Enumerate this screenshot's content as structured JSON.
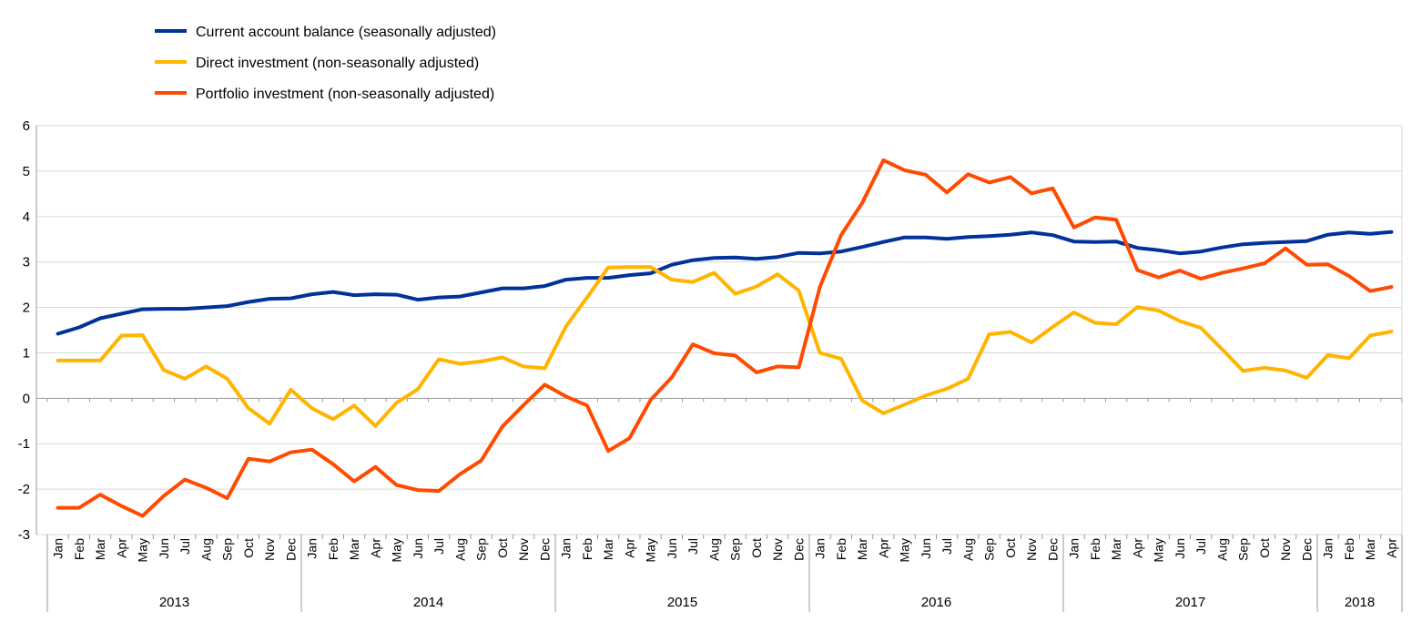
{
  "chart_data": {
    "type": "line",
    "title": "",
    "xlabel": "",
    "ylabel": "",
    "ylim": [
      -3,
      6
    ],
    "yticks": [
      -3,
      -2,
      -1,
      0,
      1,
      2,
      3,
      4,
      5,
      6
    ],
    "grid": true,
    "legend_position": "top-left",
    "months": [
      "Jan",
      "Feb",
      "Mar",
      "Apr",
      "May",
      "Jun",
      "Jul",
      "Aug",
      "Sep",
      "Oct",
      "Nov",
      "Dec"
    ],
    "years": [
      {
        "label": "2013",
        "months": 12
      },
      {
        "label": "2014",
        "months": 12
      },
      {
        "label": "2015",
        "months": 12
      },
      {
        "label": "2016",
        "months": 12
      },
      {
        "label": "2017",
        "months": 12
      },
      {
        "label": "2018",
        "months": 4
      }
    ],
    "series": [
      {
        "name": "Current account balance (seasonally adjusted)",
        "color": "#003299",
        "values": [
          1.42,
          1.56,
          1.76,
          1.86,
          1.96,
          1.97,
          1.97,
          2.0,
          2.03,
          2.12,
          2.19,
          2.2,
          2.29,
          2.34,
          2.27,
          2.29,
          2.28,
          2.17,
          2.22,
          2.24,
          2.33,
          2.42,
          2.42,
          2.47,
          2.61,
          2.65,
          2.65,
          2.71,
          2.75,
          2.94,
          3.04,
          3.09,
          3.1,
          3.07,
          3.11,
          3.2,
          3.19,
          3.23,
          3.33,
          3.44,
          3.54,
          3.54,
          3.51,
          3.55,
          3.57,
          3.6,
          3.65,
          3.59,
          3.45,
          3.44,
          3.45,
          3.31,
          3.26,
          3.19,
          3.23,
          3.32,
          3.39,
          3.42,
          3.44,
          3.46,
          3.6,
          3.65,
          3.62,
          3.66
        ]
      },
      {
        "name": "Direct investment (non-seasonally adjusted)",
        "color": "#FFB400",
        "values": [
          0.83,
          0.83,
          0.83,
          1.38,
          1.39,
          0.62,
          0.43,
          0.7,
          0.43,
          -0.22,
          -0.56,
          0.19,
          -0.22,
          -0.46,
          -0.16,
          -0.61,
          -0.1,
          0.2,
          0.86,
          0.76,
          0.81,
          0.9,
          0.7,
          0.66,
          1.58,
          2.22,
          2.88,
          2.89,
          2.89,
          2.61,
          2.56,
          2.76,
          2.3,
          2.46,
          2.73,
          2.37,
          1.0,
          0.87,
          -0.05,
          -0.33,
          -0.14,
          0.06,
          0.21,
          0.43,
          1.41,
          1.46,
          1.23,
          1.57,
          1.89,
          1.66,
          1.63,
          2.01,
          1.93,
          1.7,
          1.55,
          1.08,
          0.6,
          0.67,
          0.61,
          0.45,
          0.95,
          0.88,
          1.38,
          1.47
        ]
      },
      {
        "name": "Portfolio investment (non-seasonally adjusted)",
        "color": "#FF4B00",
        "values": [
          -2.41,
          -2.41,
          -2.12,
          -2.37,
          -2.59,
          -2.15,
          -1.79,
          -1.97,
          -2.2,
          -1.33,
          -1.39,
          -1.19,
          -1.13,
          -1.45,
          -1.83,
          -1.51,
          -1.91,
          -2.02,
          -2.04,
          -1.67,
          -1.37,
          -0.62,
          -0.15,
          0.3,
          0.04,
          -0.16,
          -1.16,
          -0.88,
          -0.04,
          0.46,
          1.19,
          0.99,
          0.94,
          0.57,
          0.7,
          0.68,
          2.45,
          3.59,
          4.3,
          5.24,
          5.02,
          4.92,
          4.53,
          4.93,
          4.75,
          4.87,
          4.51,
          4.62,
          3.76,
          3.98,
          3.93,
          2.82,
          2.66,
          2.81,
          2.63,
          2.76,
          2.86,
          2.97,
          3.3,
          2.94,
          2.95,
          2.69,
          2.36,
          2.45
        ]
      }
    ]
  }
}
